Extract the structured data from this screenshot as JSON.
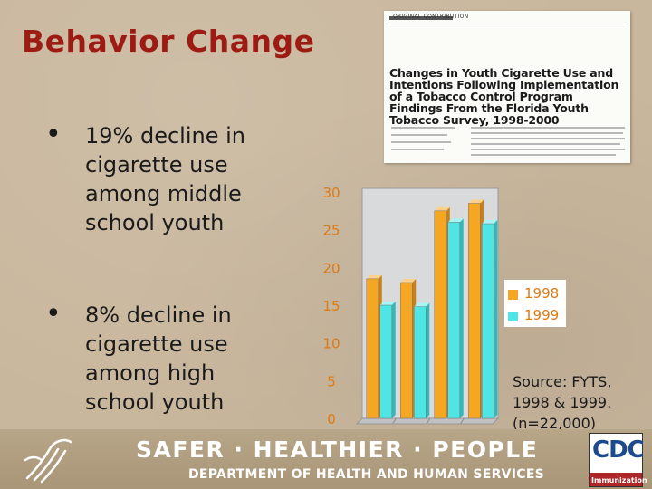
{
  "title": "Behavior Change",
  "bullets": [
    "19% decline in cigarette use among middle school youth",
    "8% decline in cigarette use among high school youth"
  ],
  "paper": {
    "header": "ORIGINAL CONTRIBUTION",
    "title": "Changes in Youth Cigarette Use and\nIntentions Following Implementation\nof a Tobacco Control Program\nFindings From the Florida Youth Tobacco Survey, 1998-2000"
  },
  "source": "Source: FYTS, 1998 & 1999. (n=22,000)",
  "footer": {
    "slogan": "SAFER · HEALTHIER · PEOPLE",
    "department": "DEPARTMENT OF HEALTH AND HUMAN SERVICES",
    "logo_text": "CDC",
    "logo_sub": "Immunization"
  },
  "colors": {
    "title": "#9e1b14",
    "series_1998": "#f5a623",
    "series_1999": "#4fe5e5",
    "axis_labels": "#e07a10",
    "background": "#c9b79d"
  },
  "chart_data": {
    "type": "bar",
    "categories": [
      "",
      "",
      "",
      ""
    ],
    "series": [
      {
        "name": "1998",
        "values": [
          18.5,
          18.0,
          27.5,
          28.5
        ]
      },
      {
        "name": "1999",
        "values": [
          15.0,
          14.8,
          26.0,
          25.8
        ]
      }
    ],
    "ylim": [
      0,
      30
    ],
    "yticks": [
      0,
      5,
      10,
      15,
      20,
      25,
      30
    ],
    "legend_position": "right",
    "grid": false
  }
}
